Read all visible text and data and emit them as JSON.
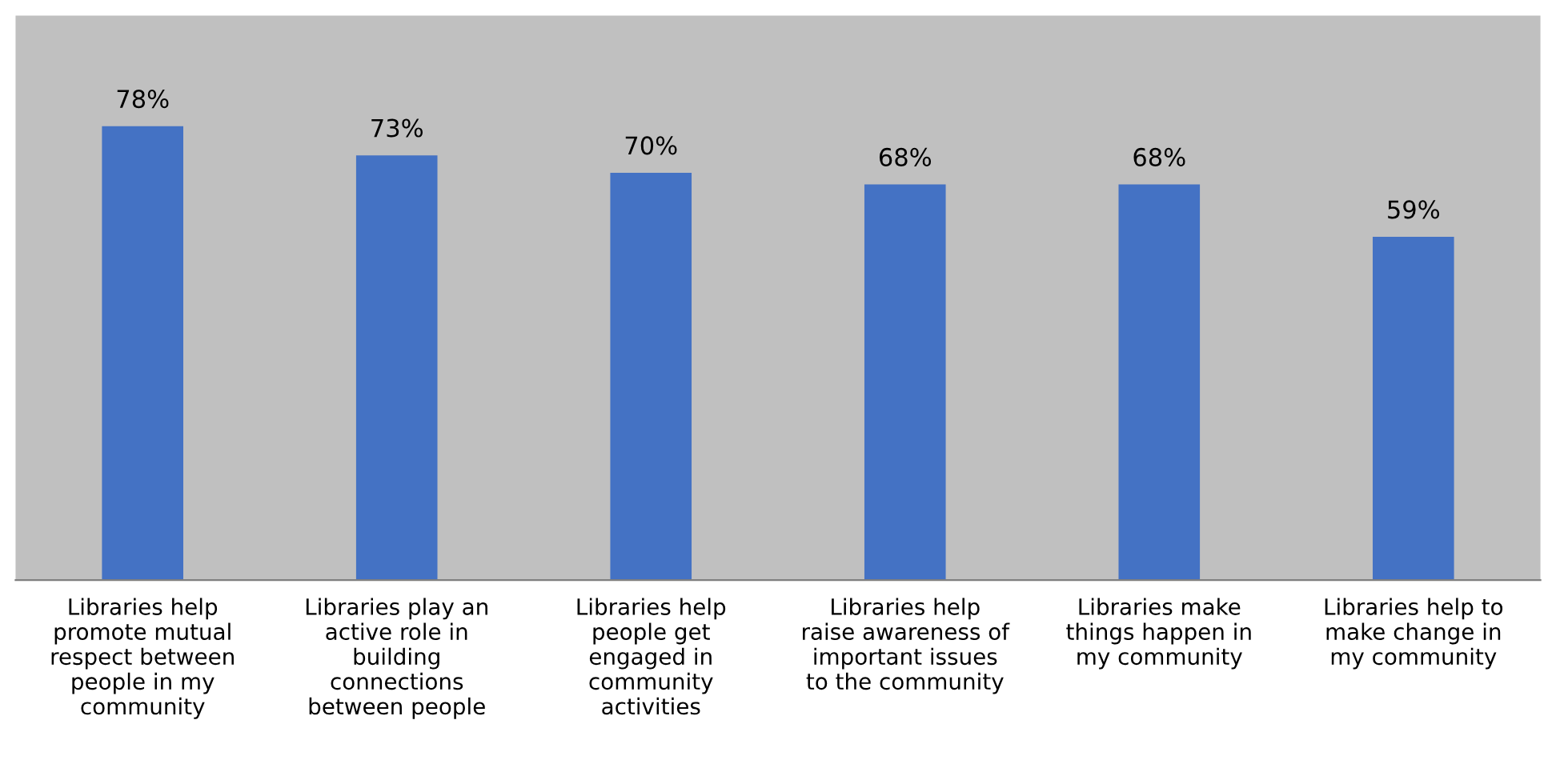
{
  "chart_data": {
    "type": "bar",
    "categories": [
      "Libraries help\npromote mutual\nrespect between\npeople in my\ncommunity",
      "Libraries play an\nactive role in\nbuilding\nconnections\nbetween people",
      "Libraries help\npeople get\nengaged in\ncommunity\nactivities",
      "Libraries help\nraise awareness of\nimportant issues\nto the community",
      "Libraries make\nthings happen in\nmy community",
      "Libraries help to\nmake change in\nmy community"
    ],
    "values": [
      78,
      73,
      70,
      68,
      68,
      59
    ],
    "value_labels": [
      "78%",
      "73%",
      "70%",
      "68%",
      "68%",
      "59%"
    ],
    "color": "#4472c4",
    "ylim": [
      0,
      97
    ],
    "grid": false,
    "legend": false
  }
}
